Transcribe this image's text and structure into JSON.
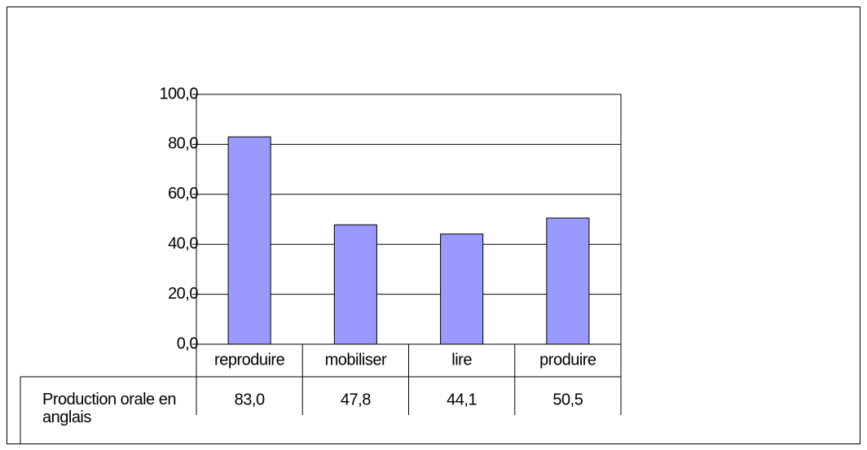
{
  "chart_data": {
    "type": "bar",
    "categories": [
      "reproduire",
      "mobiliser",
      "lire",
      "produire"
    ],
    "series": [
      {
        "name": "Production orale en anglais",
        "color": "#9999ff",
        "values": [
          83.0,
          47.8,
          44.1,
          50.5
        ],
        "value_labels": [
          "83,0",
          "47,8",
          "44,1",
          "50,5"
        ]
      }
    ],
    "ylim": [
      0,
      100
    ],
    "yticks": [
      {
        "value": 0,
        "label": "0,0"
      },
      {
        "value": 20,
        "label": "20,0"
      },
      {
        "value": 40,
        "label": "40,0"
      },
      {
        "value": 60,
        "label": "60,0"
      },
      {
        "value": 80,
        "label": "80,0"
      },
      {
        "value": 100,
        "label": "100,0"
      }
    ],
    "grid": true
  }
}
